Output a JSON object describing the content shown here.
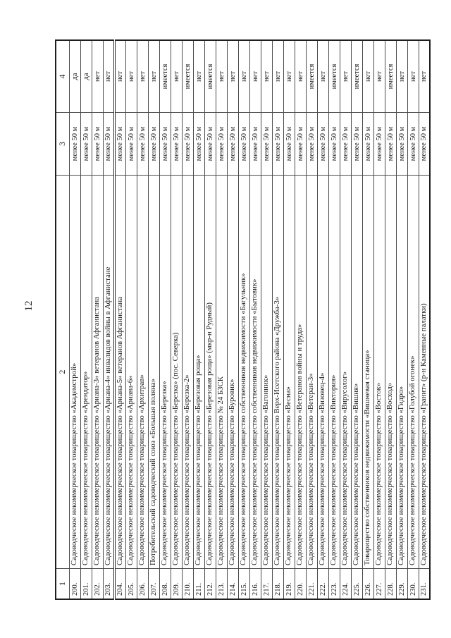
{
  "page": {
    "number": "12"
  },
  "table": {
    "headers": [
      "1",
      "2",
      "3",
      "4"
    ],
    "distance_value": "менее 50 м",
    "rows": [
      {
        "num": "200.",
        "name": "Садоводческое некоммерческое товарищество «Академстрой»",
        "distance": "менее 50 м",
        "status": "да"
      },
      {
        "num": "201.",
        "name": "Садоводческое некоммерческое товарищество «Арендатор»",
        "distance": "менее 50 м",
        "status": "да"
      },
      {
        "num": "202.",
        "name": "Садоводческое некоммерческое товарищество «Ариана-3» ветеранов Афганистана",
        "distance": "менее 50 м",
        "status": "нет"
      },
      {
        "num": "203.",
        "name": "Садоводческое некоммерческое товарищество «Ариана-4» инвалидов войны в Афганистане",
        "distance": "менее 50 м",
        "status": "нет"
      },
      {
        "num": "204.",
        "name": "Садоводческое некоммерческое товарищество «Ариана-5» ветеранов Афганистана",
        "distance": "менее 50 м",
        "status": "нет"
      },
      {
        "num": "205.",
        "name": "Садоводческое некоммерческое товарищество «Ариана-6»",
        "distance": "менее 50 м",
        "status": "нет"
      },
      {
        "num": "206.",
        "name": "Садоводческое некоммерческое товарищество «Архитрав»",
        "distance": "менее 50 м",
        "status": "нет"
      },
      {
        "num": "207.",
        "name": "Потребительский садоводческий союз «Большая поляна»",
        "distance": "менее 50 м",
        "status": "нет"
      },
      {
        "num": "208.",
        "name": "Садоводческое некоммерческое товарищество «Березка»",
        "distance": "менее 50 м",
        "status": "имеется"
      },
      {
        "num": "209.",
        "name": "Садоводческое некоммерческое товарищество «Березка» (пос. Северка)",
        "distance": "менее 50 м",
        "status": "нет"
      },
      {
        "num": "210.",
        "name": "Садоводческое некоммерческое товарищество «Березка-2»",
        "distance": "менее 50 м",
        "status": "имеется"
      },
      {
        "num": "211.",
        "name": "Садоводческое некоммерческое товарищество «Березовая роща»",
        "distance": "менее 50 м",
        "status": "нет"
      },
      {
        "num": "212.",
        "name": "Садоводческое некоммерческое товарищество «Березовая роща» (мкр-н Рудный)",
        "distance": "менее 50 м",
        "status": "имеется"
      },
      {
        "num": "213.",
        "name": "Садоводческое некоммерческое товарищество № 24 БЗСК",
        "distance": "менее 50 м",
        "status": "нет"
      },
      {
        "num": "214.",
        "name": "Садоводческое некоммерческое товарищество «Буровик»",
        "distance": "менее 50 м",
        "status": "нет"
      },
      {
        "num": "215.",
        "name": "Садоводческое некоммерческое товарищество собственников недвижимости «Багульник»",
        "distance": "менее 50 м",
        "status": "нет"
      },
      {
        "num": "216.",
        "name": "Садоводческое некоммерческое товарищество собственников недвижимости «Бытовик»",
        "distance": "менее 50 м",
        "status": "нет"
      },
      {
        "num": "217.",
        "name": "Садоводческое некоммерческое товарищество «Вагонник»",
        "distance": "менее 50 м",
        "status": "нет"
      },
      {
        "num": "218.",
        "name": "Садоводческое некоммерческое товарищество Верх-Исетского района «Дружба-3»",
        "distance": "менее 50 м",
        "status": "нет"
      },
      {
        "num": "219.",
        "name": "Садоводческое некоммерческое товарищество «Весна»",
        "distance": "менее 50 м",
        "status": "нет"
      },
      {
        "num": "220.",
        "name": "Садоводческое некоммерческое товарищество «Ветеранов войны и труда»",
        "distance": "менее 50 м",
        "status": "нет"
      },
      {
        "num": "221.",
        "name": "Садоводческое некоммерческое товарищество «Ветеран-3»",
        "distance": "менее 50 м",
        "status": "имеется"
      },
      {
        "num": "222.",
        "name": "Садоводческое некоммерческое товарищество «Визовец-4»",
        "distance": "менее 50 м",
        "status": "нет"
      },
      {
        "num": "223.",
        "name": "Садоводческое некоммерческое товарищество «Виктория»",
        "distance": "менее 50 м",
        "status": "имеется"
      },
      {
        "num": "224.",
        "name": "Садоводческое некоммерческое товарищество «Вирусолог»",
        "distance": "менее 50 м",
        "status": "нет"
      },
      {
        "num": "225.",
        "name": "Садоводческое некоммерческое товарищество «Вишня»",
        "distance": "менее 50 м",
        "status": "имеется"
      },
      {
        "num": "226.",
        "name": "Товарищество собственников недвижимости «Вишневая станица»",
        "distance": "менее 50 м",
        "status": "нет"
      },
      {
        "num": "227.",
        "name": "Садоводческое некоммерческое товарищество «Восток»",
        "distance": "менее 50 м",
        "status": "нет"
      },
      {
        "num": "228.",
        "name": "Садоводческое некоммерческое товарищество «Восход»",
        "distance": "менее 50 м",
        "status": "имеется"
      },
      {
        "num": "229.",
        "name": "Садоводческое некоммерческое товарищество «Гидро»",
        "distance": "менее 50 м",
        "status": "нет"
      },
      {
        "num": "230.",
        "name": "Садоводческое некоммерческое товарищество «Голубой огонек»",
        "distance": "менее 50 м",
        "status": "нет"
      },
      {
        "num": "231.",
        "name": "Садоводческое некоммерческое товарищество «Гранит» (р-н Каменные палатки)",
        "distance": "менее 50 м",
        "status": "нет"
      }
    ]
  }
}
